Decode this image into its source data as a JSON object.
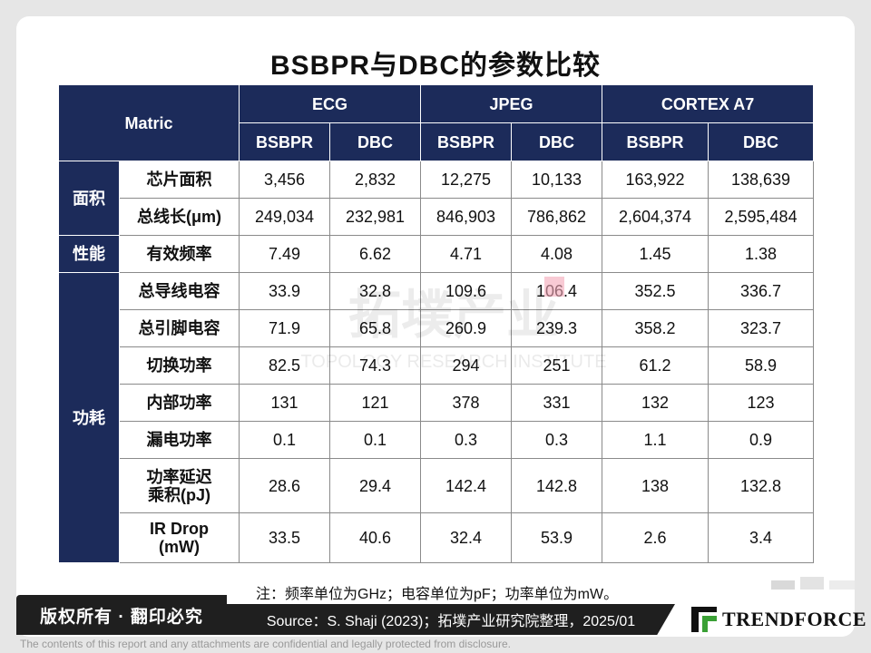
{
  "title": "BSBPR与DBC的参数比较",
  "header": {
    "matric": "Matric",
    "groups": [
      "ECG",
      "JPEG",
      "CORTEX A7"
    ],
    "sub": [
      "BSBPR",
      "DBC",
      "BSBPR",
      "DBC",
      "BSBPR",
      "DBC"
    ]
  },
  "categories": {
    "area": "面积",
    "perf": "性能",
    "power": "功耗"
  },
  "rows": [
    {
      "label": "芯片面积",
      "values": [
        "3,456",
        "2,832",
        "12,275",
        "10,133",
        "163,922",
        "138,639"
      ]
    },
    {
      "label": "总线长(μm)",
      "values": [
        "249,034",
        "232,981",
        "846,903",
        "786,862",
        "2,604,374",
        "2,595,484"
      ]
    },
    {
      "label": "有效频率",
      "values": [
        "7.49",
        "6.62",
        "4.71",
        "4.08",
        "1.45",
        "1.38"
      ]
    },
    {
      "label": "总导线电容",
      "values": [
        "33.9",
        "32.8",
        "109.6",
        "106.4",
        "352.5",
        "336.7"
      ]
    },
    {
      "label": "总引脚电容",
      "values": [
        "71.9",
        "65.8",
        "260.9",
        "239.3",
        "358.2",
        "323.7"
      ]
    },
    {
      "label": "切换功率",
      "values": [
        "82.5",
        "74.3",
        "294",
        "251",
        "61.2",
        "58.9"
      ]
    },
    {
      "label": "内部功率",
      "values": [
        "131",
        "121",
        "378",
        "331",
        "132",
        "123"
      ]
    },
    {
      "label": "漏电功率",
      "values": [
        "0.1",
        "0.1",
        "0.3",
        "0.3",
        "1.1",
        "0.9"
      ]
    },
    {
      "label_line1": "功率延迟",
      "label_line2": "乘积(pJ)",
      "values": [
        "28.6",
        "29.4",
        "142.4",
        "142.8",
        "138",
        "132.8"
      ]
    },
    {
      "label_line1": "IR Drop",
      "label_line2": "(mW)",
      "values": [
        "33.5",
        "40.6",
        "32.4",
        "53.9",
        "2.6",
        "3.4"
      ]
    }
  ],
  "watermark": {
    "cn": "拓墣产业",
    "en": "TOPOLOGY RESEARCH INSTITUTE"
  },
  "note": "注：频率单位为GHz；电容单位为pF；功率单位为mW。",
  "footer": {
    "copyright": "版权所有 · 翻印必究",
    "source": "Source：S. Shaji (2023)；拓墣产业研究院整理，2025/01",
    "logo": "TRENDFORCE",
    "disclaimer": "The contents of this report and any attachments are confidential and legally protected from disclosure."
  },
  "colors": {
    "header_bg": "#1c2b5a",
    "footer_bg": "#1f1f1f",
    "logo_green": "#3aa035"
  }
}
